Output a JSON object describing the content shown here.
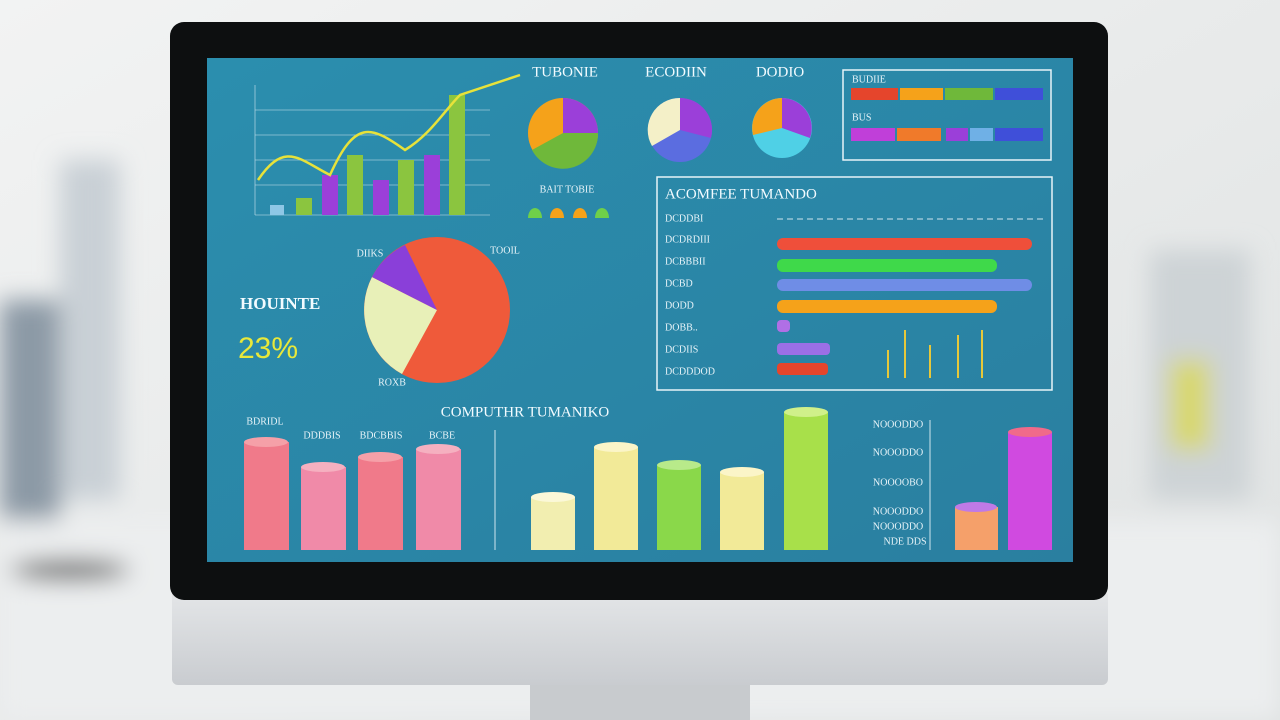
{
  "top_charts": {
    "pie_titles": [
      "TUBONIE",
      "ECODIIN",
      "DODIO"
    ],
    "pie_caption": "BAIT TOBIE",
    "legend_rows": [
      "BUDIIE",
      "BUS"
    ]
  },
  "panel": {
    "title": "ACOMFEE TUMANDO",
    "rows": [
      "DCDDBI",
      "DCDRDIII",
      "DCBBBII",
      "DCBD",
      "DODD",
      "DOBB..",
      "DCDIIS",
      "DCDDDOD"
    ]
  },
  "pie_labels": [
    "DIIKS",
    "TOOIL",
    "ROXB"
  ],
  "kpi": {
    "label": "HOUINTE",
    "value": "23%"
  },
  "bottom": {
    "title": "COMPUTHR TUMANIKO",
    "left_labels": [
      "BDRIDL",
      "DDDBIS",
      "BDCBBIS",
      "BCBE"
    ],
    "right_labels": [
      "NOOODDO",
      "NOOODDO",
      "NOOOOBO",
      "NOOODDO",
      "NOOODDO",
      "NDE DDS"
    ]
  }
}
